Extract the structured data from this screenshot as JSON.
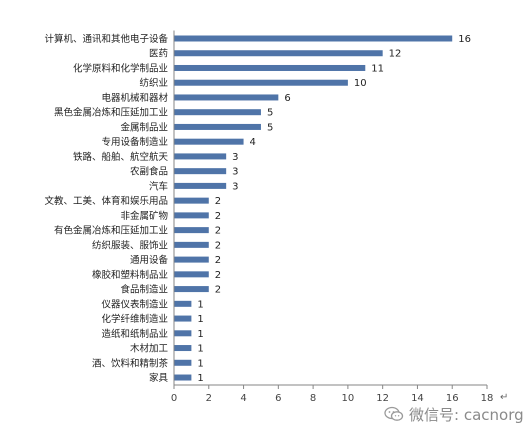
{
  "chart_data": {
    "type": "bar",
    "orientation": "horizontal",
    "categories": [
      "计算机、通讯和其他电子设备",
      "医药",
      "化学原料和化学制品业",
      "纺织业",
      "电器机械和器材",
      "黑色金属冶炼和压延加工业",
      "金属制品业",
      "专用设备制造业",
      "铁路、船舶、航空航天",
      "农副食品",
      "汽车",
      "文教、工美、体育和娱乐用品",
      "非金属矿物",
      "有色金属冶炼和压延加工业",
      "纺织服装、服饰业",
      "通用设备",
      "橡胶和塑料制品业",
      "食品制造业",
      "仪器仪表制造业",
      "化学纤维制造业",
      "造纸和纸制品业",
      "木材加工",
      "酒、饮料和精制茶",
      "家具"
    ],
    "values": [
      16,
      12,
      11,
      10,
      6,
      5,
      5,
      4,
      3,
      3,
      3,
      2,
      2,
      2,
      2,
      2,
      2,
      2,
      1,
      1,
      1,
      1,
      1,
      1
    ],
    "xlim": [
      0,
      18
    ],
    "xticks": [
      0,
      2,
      4,
      6,
      8,
      10,
      12,
      14,
      16,
      18
    ],
    "data_labels": true,
    "grid": false,
    "legend": "none",
    "title": "",
    "xlabel": "",
    "ylabel": ""
  },
  "colors": {
    "bar": "#4f74a8",
    "axis": "#868686",
    "text": "#222222",
    "watermark": "#8a8a8a"
  },
  "watermark": {
    "icon": "wechat-icon",
    "text": "微信号: cacnorg"
  },
  "return_mark": "↵"
}
